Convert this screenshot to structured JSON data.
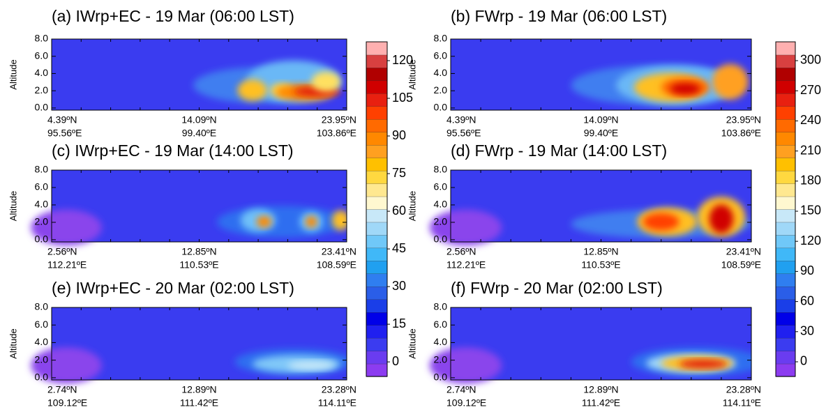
{
  "chart_data": [
    {
      "type": "contour",
      "title": "(a) IWrp+EC - 19 Mar (06:00 LST)",
      "ylabel": "Altitude",
      "ylim": [
        -0.25,
        8
      ],
      "yticks": [
        {
          "value": 0,
          "label": "0.0"
        },
        {
          "value": 2,
          "label": "2.0"
        },
        {
          "value": 4,
          "label": "4.0"
        },
        {
          "value": 6,
          "label": "6.0"
        },
        {
          "value": 8,
          "label": "8.0"
        }
      ],
      "x_labels_lat": [
        "4.39ºN",
        "14.09ºN",
        "23.95ºN"
      ],
      "x_labels_lon": [
        "95.56ºE",
        "99.40ºE",
        "103.86ºE"
      ]
    },
    {
      "type": "contour",
      "title": "(b) FWrp - 19 Mar (06:00 LST)",
      "ylabel": "Altitude",
      "ylim": [
        -0.25,
        8
      ],
      "yticks": [
        {
          "value": 0,
          "label": "0.0"
        },
        {
          "value": 2,
          "label": "2.0"
        },
        {
          "value": 4,
          "label": "4.0"
        },
        {
          "value": 6,
          "label": "6.0"
        },
        {
          "value": 8,
          "label": "8.0"
        }
      ],
      "x_labels_lat": [
        "4.39ºN",
        "14.09ºN",
        "23.95ºN"
      ],
      "x_labels_lon": [
        "95.56ºE",
        "99.40ºE",
        "103.86ºE"
      ]
    },
    {
      "type": "contour",
      "title": "(c) IWrp+EC - 19 Mar (14:00 LST)",
      "ylabel": "Altitude",
      "ylim": [
        -0.25,
        8
      ],
      "yticks": [
        {
          "value": 0,
          "label": "0.0"
        },
        {
          "value": 2,
          "label": "2.0"
        },
        {
          "value": 4,
          "label": "4.0"
        },
        {
          "value": 6,
          "label": "6.0"
        },
        {
          "value": 8,
          "label": "8.0"
        }
      ],
      "x_labels_lat": [
        "2.56ºN",
        "12.85ºN",
        "23.41ºN"
      ],
      "x_labels_lon": [
        "112.21ºE",
        "110.53ºE",
        "108.59ºE"
      ]
    },
    {
      "type": "contour",
      "title": "(d) FWrp - 19 Mar (14:00 LST)",
      "ylabel": "Altitude",
      "ylim": [
        -0.25,
        8
      ],
      "yticks": [
        {
          "value": 0,
          "label": "0.0"
        },
        {
          "value": 2,
          "label": "2.0"
        },
        {
          "value": 4,
          "label": "4.0"
        },
        {
          "value": 6,
          "label": "6.0"
        },
        {
          "value": 8,
          "label": "8.0"
        }
      ],
      "x_labels_lat": [
        "2.56ºN",
        "12.85ºN",
        "23.41ºN"
      ],
      "x_labels_lon": [
        "112.21ºE",
        "110.53ºE",
        "108.59ºE"
      ]
    },
    {
      "type": "contour",
      "title": "(e) IWrp+EC - 20 Mar (02:00 LST)",
      "ylabel": "Altitude",
      "ylim": [
        -0.25,
        8
      ],
      "yticks": [
        {
          "value": 0,
          "label": "0.0"
        },
        {
          "value": 2,
          "label": "2.0"
        },
        {
          "value": 4,
          "label": "4.0"
        },
        {
          "value": 6,
          "label": "6.0"
        },
        {
          "value": 8,
          "label": "8.0"
        }
      ],
      "x_labels_lat": [
        "2.74ºN",
        "12.89ºN",
        "23.28ºN"
      ],
      "x_labels_lon": [
        "109.12ºE",
        "111.42ºE",
        "114.11ºE"
      ]
    },
    {
      "type": "contour",
      "title": "(f) FWrp - 20 Mar (02:00 LST)",
      "ylabel": "Altitude",
      "ylim": [
        -0.25,
        8
      ],
      "yticks": [
        {
          "value": 0,
          "label": "0.0"
        },
        {
          "value": 2,
          "label": "2.0"
        },
        {
          "value": 4,
          "label": "4.0"
        },
        {
          "value": 6,
          "label": "6.0"
        },
        {
          "value": 8,
          "label": "8.0"
        }
      ],
      "x_labels_lat": [
        "2.74ºN",
        "12.89ºN",
        "23.28ºN"
      ],
      "x_labels_lon": [
        "109.12ºE",
        "111.42ºE",
        "114.11ºE"
      ]
    }
  ],
  "colorbars": [
    {
      "clim": [
        -5.8,
        127.5
      ],
      "ticks": [
        0,
        15,
        30,
        45,
        60,
        75,
        90,
        105,
        120
      ],
      "colors": [
        "#8c3cf0",
        "#6a3cf0",
        "#3b3cf0",
        "#2020f0",
        "#0000e8",
        "#1a3ee8",
        "#2a5ee8",
        "#2f7ef0",
        "#20a0f0",
        "#40b8f8",
        "#70c8f8",
        "#a0d8f8",
        "#c8e8f8",
        "#fff8d0",
        "#ffe890",
        "#ffd840",
        "#ffc000",
        "#ffa020",
        "#ff8800",
        "#ff6a00",
        "#ff4000",
        "#e82010",
        "#d00000",
        "#b00000",
        "#d84040",
        "#ffb0b0"
      ]
    },
    {
      "clim": [
        -14.6,
        318.75
      ],
      "ticks": [
        0,
        30,
        60,
        90,
        120,
        150,
        180,
        210,
        240,
        270,
        300
      ],
      "colors": [
        "#8c3cf0",
        "#6a3cf0",
        "#3b3cf0",
        "#2020f0",
        "#0000e8",
        "#1a3ee8",
        "#2a5ee8",
        "#2f7ef0",
        "#20a0f0",
        "#40b8f8",
        "#70c8f8",
        "#a0d8f8",
        "#c8e8f8",
        "#fff8d0",
        "#ffe890",
        "#ffd840",
        "#ffc000",
        "#ffa020",
        "#ff8800",
        "#ff6a00",
        "#ff4000",
        "#e82010",
        "#d00000",
        "#b00000",
        "#d84040",
        "#ffb0b0"
      ]
    }
  ]
}
